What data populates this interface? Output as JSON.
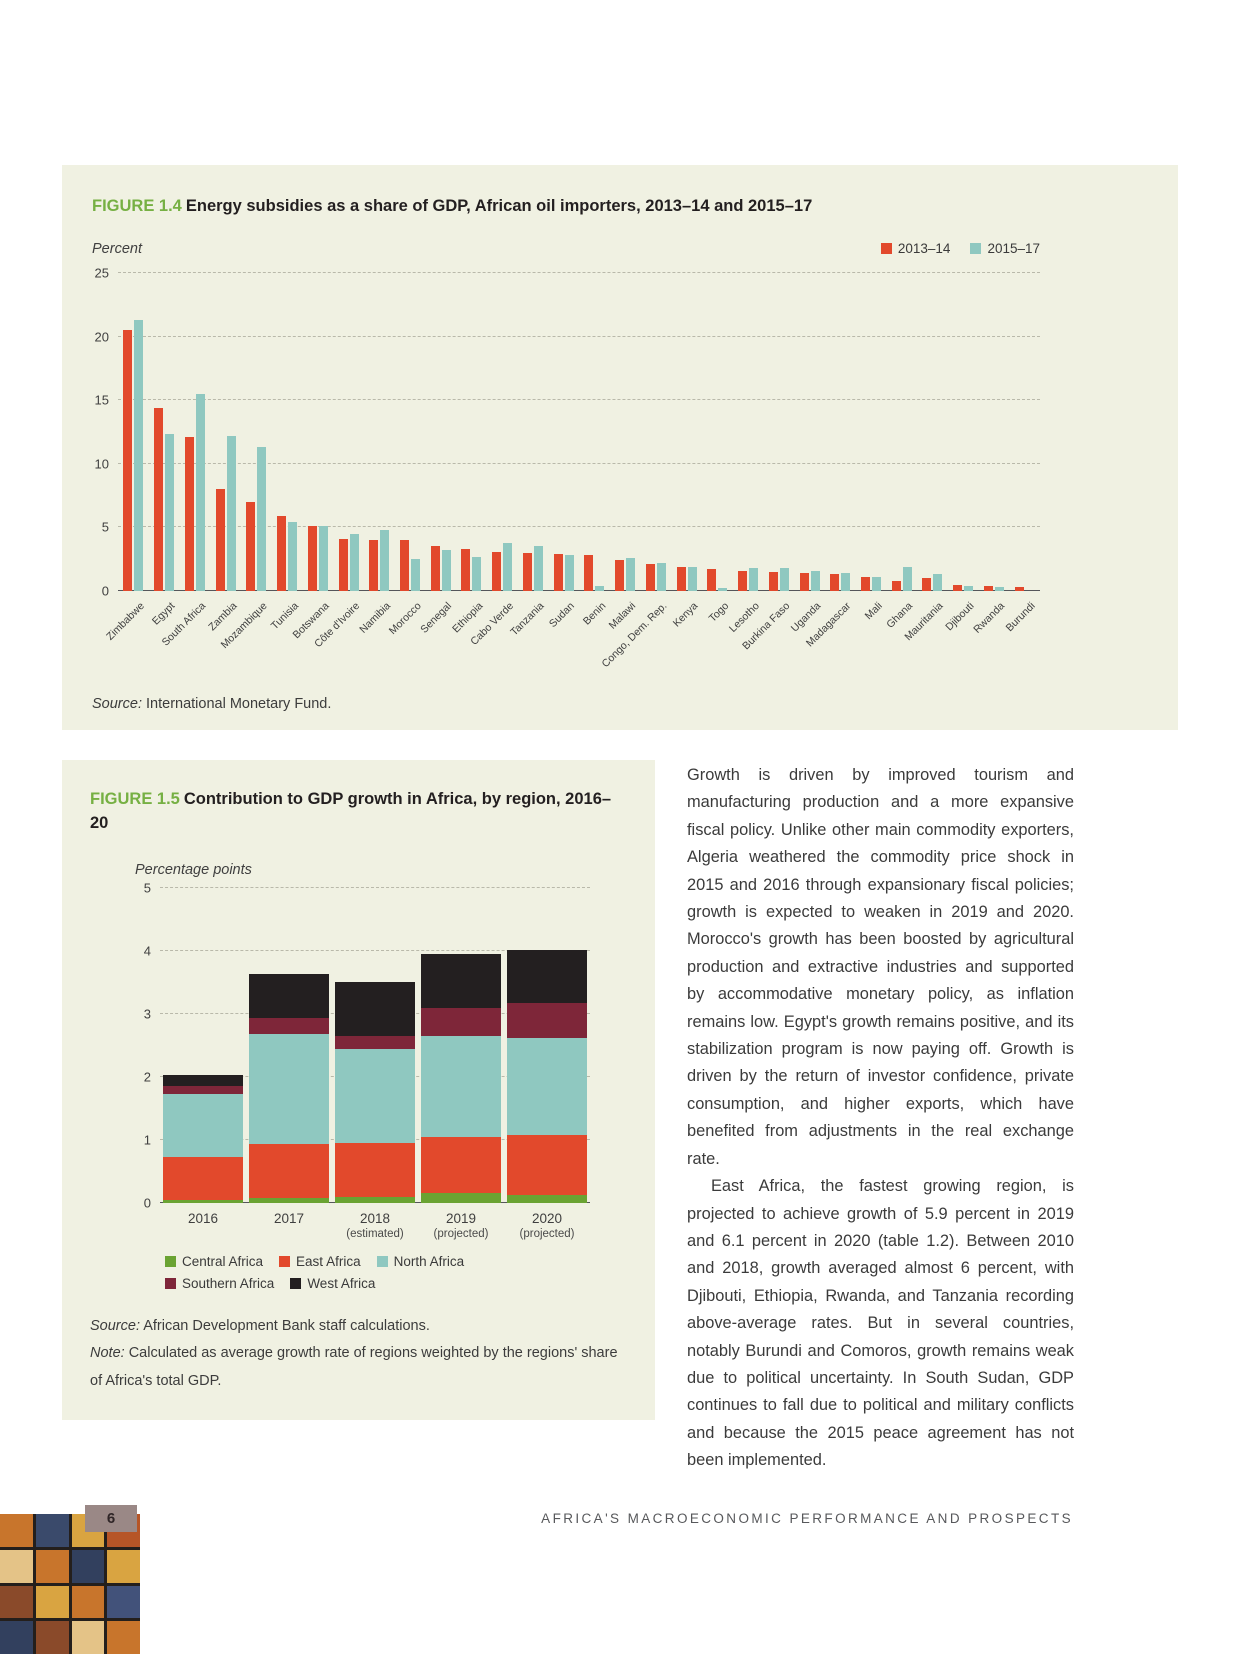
{
  "figure_1_4": {
    "label": "FIGURE 1.4",
    "title": "Energy subsidies as a share of GDP, African oil importers, 2013–14 and 2015–17",
    "axis_unit": "Percent",
    "source_label": "Source:",
    "source_text": "International Monetary Fund.",
    "chart_data": {
      "type": "bar",
      "grouped": true,
      "title": "Energy subsidies as a share of GDP, African oil importers, 2013–14 and 2015–17",
      "xlabel": "",
      "ylabel": "Percent",
      "ylim": [
        0,
        25
      ],
      "yticks": [
        0,
        5,
        10,
        15,
        20,
        25
      ],
      "grid": true,
      "legend_position": "top-right",
      "categories": [
        "Zimbabwe",
        "Egypt",
        "South Africa",
        "Zambia",
        "Mozambique",
        "Tunisia",
        "Botswana",
        "Côte d'Ivoire",
        "Namibia",
        "Morocco",
        "Senegal",
        "Ethiopia",
        "Cabo Verde",
        "Tanzania",
        "Sudan",
        "Benin",
        "Malawi",
        "Congo, Dem. Rep.",
        "Kenya",
        "Togo",
        "Lesotho",
        "Burkina Faso",
        "Uganda",
        "Madagascar",
        "Mali",
        "Ghana",
        "Mauritania",
        "Djibouti",
        "Rwanda",
        "Burundi"
      ],
      "series": [
        {
          "name": "2013–14",
          "color": "#e2492c",
          "values": [
            20.5,
            14.4,
            12.1,
            8.0,
            7.0,
            5.9,
            5.1,
            4.1,
            4.0,
            4.0,
            3.5,
            3.3,
            3.1,
            3.0,
            2.9,
            2.8,
            2.4,
            2.1,
            1.9,
            1.7,
            1.6,
            1.5,
            1.4,
            1.3,
            1.1,
            0.8,
            1.0,
            0.5,
            0.4,
            0.3
          ]
        },
        {
          "name": "2015–17",
          "color": "#8fc8c0",
          "values": [
            21.3,
            12.3,
            15.5,
            12.2,
            11.3,
            5.4,
            5.1,
            4.5,
            4.8,
            2.5,
            3.2,
            2.7,
            3.8,
            3.5,
            2.8,
            0.4,
            2.6,
            2.2,
            1.9,
            0.2,
            1.8,
            1.8,
            1.6,
            1.4,
            1.1,
            1.9,
            1.3,
            0.4,
            0.3,
            0.0
          ]
        }
      ]
    }
  },
  "figure_1_5": {
    "label": "FIGURE 1.5",
    "title": "Contribution to GDP growth in Africa, by region, 2016–20",
    "axis_unit": "Percentage points",
    "source_label": "Source:",
    "source_text": "African Development Bank staff calculations.",
    "note_label": "Note:",
    "note_text": "Calculated as average growth rate of regions weighted by the regions' share of Africa's total GDP.",
    "chart_data": {
      "type": "bar",
      "stacked": true,
      "title": "Contribution to GDP growth in Africa, by region, 2016–20",
      "xlabel": "",
      "ylabel": "Percentage points",
      "ylim": [
        0,
        5
      ],
      "yticks": [
        0,
        1,
        2,
        3,
        4,
        5
      ],
      "grid": true,
      "legend_position": "bottom",
      "categories": [
        "2016",
        "2017",
        "2018",
        "2019",
        "2020"
      ],
      "category_sublabels": [
        "",
        "",
        "(estimated)",
        "(projected)",
        "(projected)"
      ],
      "series": [
        {
          "name": "Central Africa",
          "color": "#6aa332",
          "values": [
            0.05,
            0.08,
            0.1,
            0.15,
            0.12
          ]
        },
        {
          "name": "East Africa",
          "color": "#e2492c",
          "values": [
            0.68,
            0.85,
            0.85,
            0.9,
            0.95
          ]
        },
        {
          "name": "North Africa",
          "color": "#8fc8c0",
          "values": [
            1.0,
            1.75,
            1.5,
            1.6,
            1.55
          ]
        },
        {
          "name": "Southern Africa",
          "color": "#7e2639",
          "values": [
            0.12,
            0.25,
            0.2,
            0.45,
            0.55
          ]
        },
        {
          "name": "West Africa",
          "color": "#231f20",
          "values": [
            0.18,
            0.7,
            0.85,
            0.85,
            0.85
          ]
        }
      ]
    }
  },
  "body_text": {
    "paragraph_1": "Growth is driven by improved tourism and manufacturing production and a more expansive fiscal policy. Unlike other main commodity exporters, Algeria weathered the commodity price shock in 2015 and 2016 through expansionary fiscal policies; growth is expected to weaken in 2019 and 2020. Morocco's growth has been boosted by agricultural production and extractive industries and supported by accommodative monetary policy, as inflation remains low. Egypt's growth remains positive, and its stabilization program is now paying off. Growth is driven by the return of investor confidence, private consumption, and higher exports, which have benefited from adjustments in the real exchange rate.",
    "paragraph_2": "East Africa, the fastest growing region, is projected to achieve growth of 5.9 percent in 2019 and 6.1 percent in 2020 (table 1.2). Between 2010 and 2018, growth averaged almost 6 percent, with Djibouti, Ethiopia, Rwanda, and Tanzania recording above-average rates. But in several countries, notably Burundi and Comoros, growth remains weak due to political uncertainty. In South Sudan, GDP continues to fall due to political and military conflicts and because the 2015 peace agreement has not been implemented."
  },
  "footer": {
    "page_number": "6",
    "title": "AFRICA'S MACROECONOMIC PERFORMANCE AND PROSPECTS"
  },
  "decorative_pattern_colors": [
    "#c8752c",
    "#3a4a6b",
    "#d9a441",
    "#b65527",
    "#e4c387",
    "#c8752c",
    "#32405e",
    "#d9a441",
    "#8a4a2a",
    "#d9a441",
    "#c8752c",
    "#42527a",
    "#32405e",
    "#8a4a2a",
    "#e4c387",
    "#c8752c"
  ]
}
